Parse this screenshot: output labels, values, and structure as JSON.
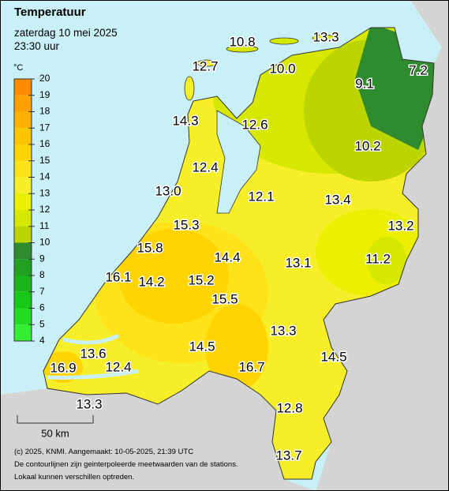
{
  "header": {
    "title": "Temperatuur",
    "date": "zaterdag 10 mei 2025",
    "time": "23:30 uur"
  },
  "legend": {
    "unit": "°C",
    "ticks": [
      20,
      19,
      18,
      17,
      16,
      15,
      14,
      13,
      12,
      11,
      10,
      9,
      8,
      7,
      6,
      5,
      4
    ],
    "colors": [
      "#ff8c00",
      "#ffa000",
      "#ffb300",
      "#ffc400",
      "#ffd400",
      "#ffe31a",
      "#f7ee2a",
      "#eaf000",
      "#d6e800",
      "#bcd400",
      "#2e8b2e",
      "#22a022",
      "#1cb41c",
      "#18c818",
      "#22dc22",
      "#33ee33"
    ]
  },
  "stations": [
    10.8,
    13.3,
    12.7,
    10.0,
    9.1,
    7.2,
    14.3,
    12.6,
    10.2,
    12.4,
    13.0,
    12.1,
    13.4,
    13.2,
    15.3,
    15.8,
    14.4,
    13.1,
    11.2,
    16.1,
    14.2,
    15.2,
    15.5,
    13.3,
    13.6,
    14.5,
    14.5,
    16.9,
    12.4,
    16.7,
    13.3,
    12.8,
    13.7
  ],
  "scale": {
    "label": "50 km"
  },
  "footer": [
    "(c) 2025, KNMI. Aangemaakt: 10-05-2025, 21:39 UTC",
    "De contourlijnen zijn geinterpoleerde meetwaarden van de stations.",
    "Lokaal kunnen verschillen optreden."
  ]
}
